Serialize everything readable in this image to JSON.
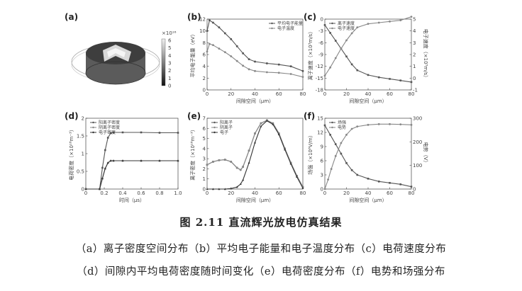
{
  "figure": {
    "title": "图 2.11  直流辉光放电仿真结果",
    "caption_line1": "（a）离子密度空间分布（b）平均电子能量和电子温度分布（c）电荷速度分布",
    "caption_line2": "（d）间隙内平均电荷密度随时间变化（e）电荷密度分布（f）电势和场强分布"
  },
  "panel_a": {
    "label": "(a)",
    "colorbar_exponent": "×10¹⁶",
    "colorbar_ticks": [
      "6",
      "5",
      "4",
      "3",
      "2",
      "1",
      "0"
    ]
  },
  "chart_data": [
    {
      "panel": "(b)",
      "type": "line",
      "xlabel": "间隙空间（μm）",
      "ylabel": "平均电子能量（eV）",
      "xlim": [
        0,
        80
      ],
      "ylim": [
        0,
        12
      ],
      "xticks": [
        "0",
        "20",
        "40",
        "60",
        "80"
      ],
      "yticks": [
        "0",
        "2",
        "4",
        "6",
        "8",
        "10",
        "12"
      ],
      "legend_position": "top-right",
      "series": [
        {
          "name": "平均电子能量",
          "x": [
            0,
            2,
            5,
            10,
            15,
            20,
            25,
            30,
            35,
            40,
            50,
            60,
            70,
            80
          ],
          "values": [
            10.0,
            11.8,
            11.4,
            10.6,
            9.6,
            8.6,
            7.4,
            6.2,
            5.2,
            4.8,
            4.5,
            4.3,
            4.0,
            3.2
          ]
        },
        {
          "name": "电子温度",
          "x": [
            0,
            2,
            5,
            10,
            15,
            20,
            25,
            30,
            35,
            40,
            50,
            60,
            70,
            80
          ],
          "values": [
            6.5,
            7.8,
            7.6,
            7.0,
            6.4,
            5.7,
            4.9,
            4.1,
            3.5,
            3.2,
            3.0,
            2.9,
            2.7,
            2.2
          ]
        }
      ]
    },
    {
      "panel": "(c)",
      "type": "line",
      "xlabel": "间隙空间（μm）",
      "ylabel": "离子速度（×10³m/s）",
      "ylabel_right": "电子速度（×10⁵m/s）",
      "xlim": [
        0,
        80
      ],
      "ylim": [
        -18,
        0
      ],
      "ylim_right": [
        -1,
        5
      ],
      "xticks": [
        "0",
        "20",
        "40",
        "60",
        "80"
      ],
      "yticks": [
        "0",
        "-3",
        "-6",
        "-9",
        "-12",
        "-15",
        "-18"
      ],
      "yticks_right": [
        "5",
        "4",
        "3",
        "2",
        "1",
        "0",
        "-1"
      ],
      "legend_position": "top-left",
      "series": [
        {
          "name": "离子速度",
          "axis": "left",
          "x": [
            0,
            5,
            10,
            15,
            20,
            25,
            30,
            40,
            50,
            60,
            70,
            80
          ],
          "values": [
            -1.5,
            -3.5,
            -5.5,
            -7.5,
            -9.5,
            -11.5,
            -13.0,
            -14.2,
            -14.8,
            -15.2,
            -15.6,
            -16.0
          ]
        },
        {
          "name": "电子速度",
          "axis": "right",
          "x": [
            0,
            5,
            10,
            15,
            20,
            25,
            30,
            40,
            50,
            60,
            70,
            80
          ],
          "values": [
            0.2,
            0.9,
            1.7,
            2.5,
            3.2,
            3.8,
            4.3,
            4.6,
            4.7,
            4.8,
            4.9,
            5.2
          ]
        }
      ]
    },
    {
      "panel": "(d)",
      "type": "line",
      "xlabel": "时间（μs）",
      "ylabel": "电荷密度（×10¹⁸m⁻³）",
      "xlim": [
        0,
        1.0
      ],
      "ylim": [
        0,
        2.0
      ],
      "xticks": [
        "0",
        "0.2",
        "0.4",
        "0.6",
        "0.8",
        "1.0"
      ],
      "yticks": [
        "0",
        "0.5",
        "1",
        "1.5",
        "2"
      ],
      "legend_position": "top-left",
      "series": [
        {
          "name": "阳离子密度",
          "x": [
            0,
            0.15,
            0.18,
            0.21,
            0.24,
            0.27,
            0.3,
            0.4,
            0.6,
            0.8,
            1.0
          ],
          "values": [
            0,
            0,
            0.6,
            1.1,
            1.45,
            1.58,
            1.6,
            1.6,
            1.6,
            1.59,
            1.59
          ]
        },
        {
          "name": "阴离子密度",
          "x": [
            0,
            0.15,
            0.18,
            0.21,
            0.24,
            0.27,
            0.3,
            0.4,
            0.6,
            0.8,
            1.0
          ],
          "values": [
            0,
            0,
            0.3,
            0.58,
            0.74,
            0.8,
            0.8,
            0.8,
            0.8,
            0.8,
            0.8
          ]
        },
        {
          "name": "电子密度",
          "x": [
            0,
            0.15,
            0.18,
            0.21,
            0.24,
            0.27,
            0.3,
            0.4,
            0.6,
            0.8,
            1.0
          ],
          "values": [
            0,
            0,
            0.3,
            0.58,
            0.74,
            0.8,
            0.8,
            0.8,
            0.8,
            0.8,
            0.8
          ]
        }
      ]
    },
    {
      "panel": "(e)",
      "type": "line",
      "xlabel": "间隙空间（μm）",
      "ylabel": "离子密度（×10¹⁸m⁻³）",
      "xlim": [
        0,
        80
      ],
      "ylim": [
        0,
        7
      ],
      "xticks": [
        "0",
        "20",
        "40",
        "60",
        "80"
      ],
      "yticks": [
        "0",
        "1",
        "2",
        "3",
        "4",
        "5",
        "6",
        "7"
      ],
      "legend_position": "top-left",
      "series": [
        {
          "name": "阳离子",
          "x": [
            0,
            5,
            10,
            15,
            20,
            25,
            28,
            30,
            35,
            40,
            45,
            50,
            55,
            60,
            65,
            70,
            75,
            80
          ],
          "values": [
            2.4,
            2.7,
            2.85,
            2.9,
            2.7,
            2.1,
            1.9,
            2.2,
            3.8,
            5.5,
            6.5,
            6.8,
            6.5,
            5.5,
            4.0,
            2.6,
            1.3,
            0.2
          ]
        },
        {
          "name": "阴离子",
          "x": [
            0,
            5,
            10,
            15,
            20,
            25,
            28,
            30,
            35,
            40,
            45,
            50,
            55,
            60,
            65,
            70,
            75,
            80
          ],
          "values": [
            2.4,
            2.7,
            2.85,
            2.9,
            2.7,
            2.1,
            1.9,
            2.2,
            3.8,
            5.5,
            6.5,
            6.8,
            6.5,
            5.5,
            4.0,
            2.6,
            1.3,
            0.2
          ]
        },
        {
          "name": "电子",
          "x": [
            0,
            5,
            10,
            15,
            20,
            25,
            28,
            30,
            35,
            40,
            45,
            50,
            55,
            60,
            65,
            70,
            75,
            80
          ],
          "values": [
            0,
            0,
            0,
            0,
            0.05,
            0.2,
            0.5,
            0.9,
            2.6,
            4.6,
            6.2,
            6.75,
            6.4,
            5.4,
            3.9,
            2.5,
            1.2,
            0.1
          ]
        }
      ]
    },
    {
      "panel": "(f)",
      "type": "line",
      "xlabel": "间隙空间（μm）",
      "ylabel": "场强（×10⁶V/m）",
      "ylabel_right": "电势（V）",
      "xlim": [
        0,
        80
      ],
      "ylim": [
        0,
        15
      ],
      "ylim_right": [
        0,
        300
      ],
      "xticks": [
        "0",
        "20",
        "40",
        "60",
        "80"
      ],
      "yticks": [
        "0",
        "3",
        "6",
        "9",
        "12",
        "15"
      ],
      "yticks_right": [
        "0",
        "100",
        "200",
        "300"
      ],
      "legend_position": "top-left",
      "series": [
        {
          "name": "场强",
          "axis": "left",
          "x": [
            0,
            5,
            10,
            15,
            20,
            25,
            30,
            40,
            50,
            60,
            70,
            80
          ],
          "values": [
            13.5,
            11.5,
            9.5,
            7.5,
            5.5,
            4.0,
            3.0,
            2.2,
            1.6,
            1.3,
            1.0,
            0.5
          ]
        },
        {
          "name": "电势",
          "axis": "right",
          "x": [
            0,
            3,
            6,
            10,
            15,
            20,
            25,
            30,
            40,
            50,
            60,
            70,
            80
          ],
          "values": [
            0,
            40,
            85,
            140,
            195,
            230,
            255,
            265,
            272,
            275,
            275,
            274,
            272
          ]
        }
      ]
    }
  ]
}
